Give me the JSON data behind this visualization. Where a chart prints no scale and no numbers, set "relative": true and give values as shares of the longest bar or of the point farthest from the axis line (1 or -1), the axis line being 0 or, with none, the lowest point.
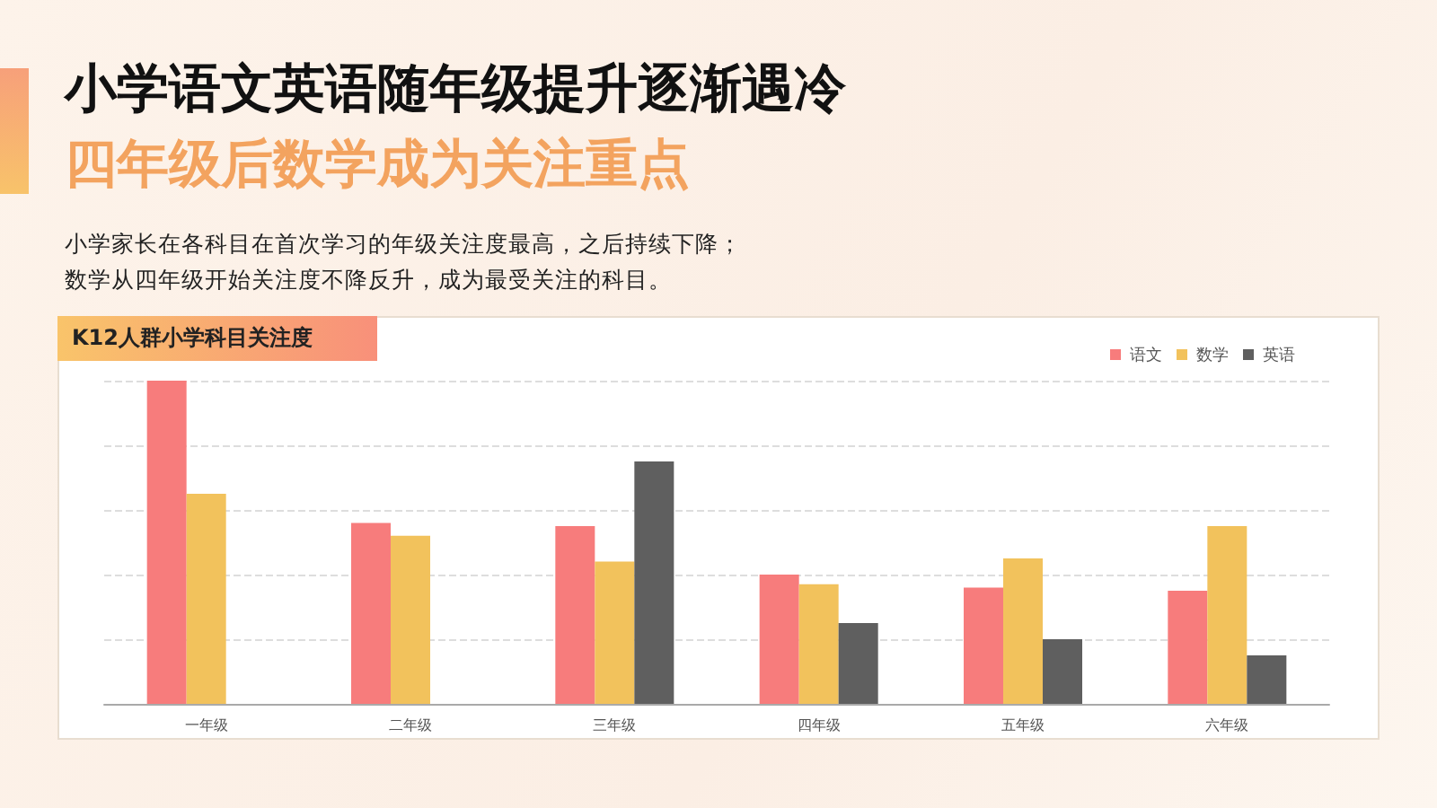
{
  "chart_data": {
    "type": "bar",
    "title": "小学语文英语随年级提升逐渐遇冷",
    "subtitle": "四年级后数学成为关注重点",
    "annotations": [
      "小学家长在各科目在首次学习的年级关注度最高，之后持续下降；",
      "数学从四年级开始关注度不降反升，成为最受关注的科目。",
      "K12人群小学科目关注度"
    ],
    "categories": [
      "一年级",
      "二年级",
      "三年级",
      "四年级",
      "五年级",
      "六年级"
    ],
    "series": [
      {
        "name": "语文",
        "color": "#f77c7c",
        "values": [
          1,
          0.56,
          0.55,
          0.4,
          0.36,
          0.35
        ]
      },
      {
        "name": "数学",
        "color": "#f2c25c",
        "values": [
          0.65,
          0.52,
          0.44,
          0.37,
          0.45,
          0.55
        ]
      },
      {
        "name": "英语",
        "color": "#5f5f5f",
        "values": [
          null,
          null,
          0.75,
          0.25,
          0.2,
          0.15
        ]
      }
    ],
    "relative": true,
    "grid": "y",
    "legend": "top right"
  }
}
